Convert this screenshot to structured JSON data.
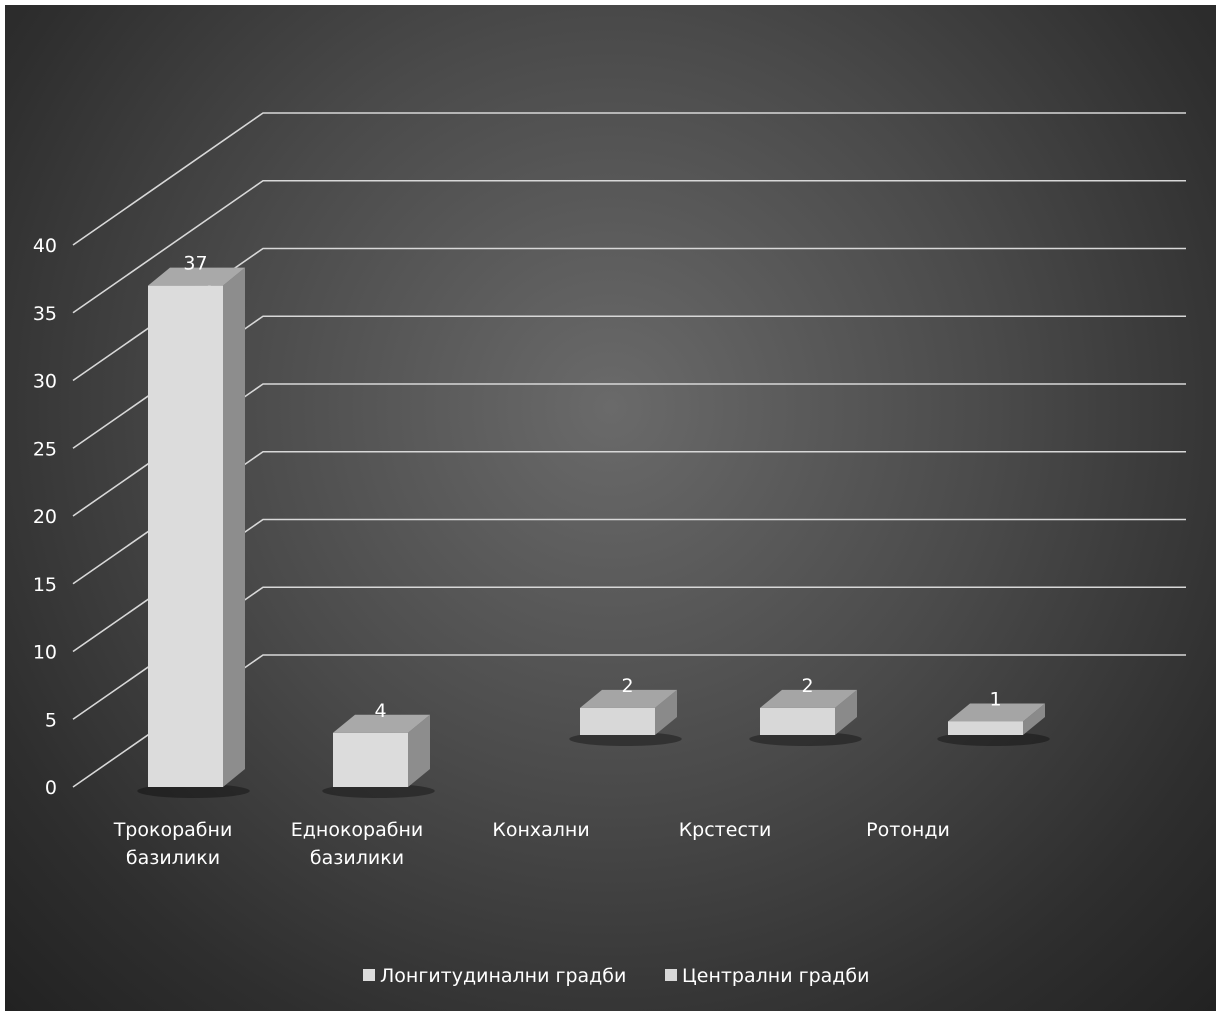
{
  "chart_data": {
    "type": "bar",
    "view": "3d-column",
    "categories": [
      [
        "Трокорабни",
        "базилики"
      ],
      [
        "Еднокорабни",
        "базилики"
      ],
      [
        "Конхални"
      ],
      [
        "Крстести"
      ],
      [
        "Ротонди"
      ]
    ],
    "series": [
      {
        "name": "Лонгитудинални градби",
        "values": [
          37,
          4,
          null,
          null,
          null
        ]
      },
      {
        "name": "Централни градби",
        "values": [
          null,
          null,
          2,
          2,
          1
        ]
      }
    ],
    "data_labels": [
      "37",
      "4",
      "2",
      "2",
      "1"
    ],
    "ylim": [
      0,
      40
    ],
    "yticks": [
      0,
      5,
      10,
      15,
      20,
      25,
      30,
      35,
      40
    ],
    "grid": true,
    "legend_position": "bottom",
    "colors": {
      "series_front": [
        "#dcdcdc",
        "#d8d8d8"
      ],
      "series_top": [
        "#a9a9a9",
        "#a5a5a5"
      ],
      "series_side": [
        "#8d8d8d",
        "#8a8a8a"
      ],
      "gridline": "#d8d8d8",
      "text": "#ffffff"
    }
  }
}
